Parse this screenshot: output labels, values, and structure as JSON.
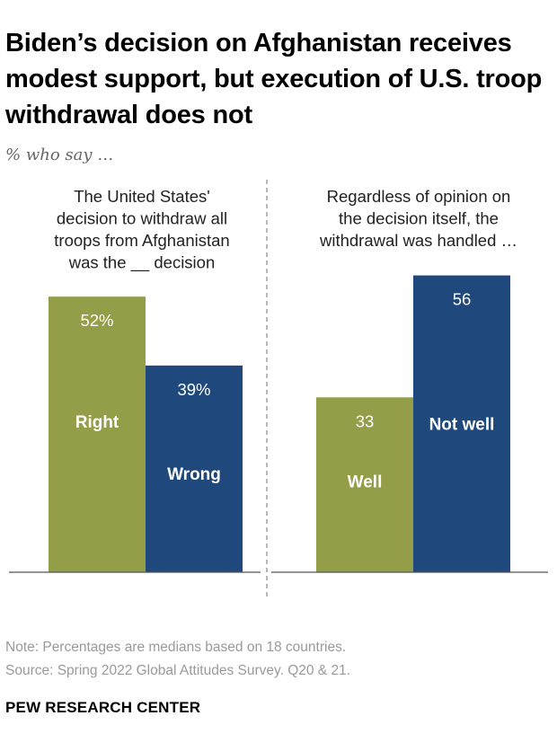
{
  "title": "Biden’s decision on Afghanistan receives modest support, but execution of U.S. troop withdrawal does not",
  "subtitle": "% who say …",
  "colors": {
    "green": "#949d48",
    "blue": "#1f497d",
    "axis": "#555555",
    "divider": "#888888"
  },
  "chart_data": [
    {
      "type": "bar",
      "panel_label": [
        "The United States'",
        "decision to withdraw all",
        "troops from Afghanistan",
        "was the __ decision"
      ],
      "categories": [
        "Right",
        "Wrong"
      ],
      "values": [
        52,
        39
      ],
      "value_labels": [
        "52%",
        "39%"
      ],
      "colors": [
        "#949d48",
        "#1f497d"
      ],
      "ylim": [
        0,
        56
      ]
    },
    {
      "type": "bar",
      "panel_label": [
        "Regardless of opinion on",
        "the decision itself, the",
        "withdrawal was handled …"
      ],
      "categories": [
        "Well",
        "Not well"
      ],
      "values": [
        33,
        56
      ],
      "value_labels": [
        "33",
        "56"
      ],
      "colors": [
        "#949d48",
        "#1f497d"
      ],
      "ylim": [
        0,
        56
      ]
    }
  ],
  "note": "Note: Percentages are medians based on 18 countries.",
  "source": "Source: Spring 2022 Global Attitudes Survey. Q20 & 21.",
  "brand": "PEW RESEARCH CENTER"
}
